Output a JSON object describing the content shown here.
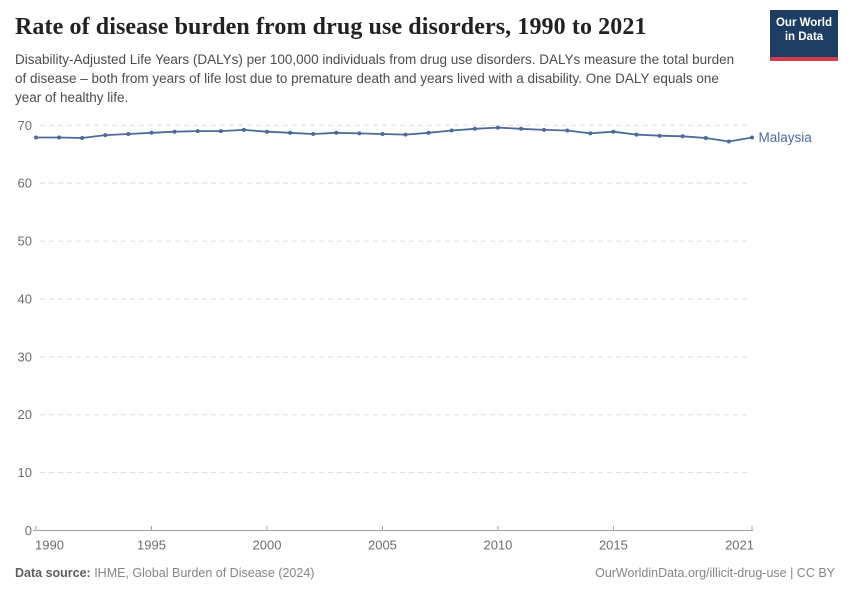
{
  "header": {
    "title": "Rate of disease burden from drug use disorders, 1990 to 2021",
    "subtitle": "Disability-Adjusted Life Years (DALYs) per 100,000 individuals from drug use disorders. DALYs measure the total burden of disease – both from years of life lost due to premature death and years lived with a disability. One DALY equals one year of healthy life.",
    "logo": {
      "line1": "Our World",
      "line2": "in Data",
      "bg_color": "#1d3d63",
      "bar_color": "#cf3e4c"
    }
  },
  "chart_data": {
    "type": "line",
    "title": "Rate of disease burden from drug use disorders, 1990 to 2021",
    "xlabel": "",
    "ylabel": "",
    "xlim": [
      1990,
      2021
    ],
    "ylim": [
      0,
      70
    ],
    "xticks": [
      1990,
      1995,
      2000,
      2005,
      2010,
      2015,
      2021
    ],
    "yticks": [
      0,
      10,
      20,
      30,
      40,
      50,
      60,
      70
    ],
    "grid": "horizontal-dashed",
    "legend_position": "end-of-line",
    "series": [
      {
        "name": "Malaysia",
        "color": "#4C6A9C",
        "years": [
          1990,
          1991,
          1992,
          1993,
          1994,
          1995,
          1996,
          1997,
          1998,
          1999,
          2000,
          2001,
          2002,
          2003,
          2004,
          2005,
          2006,
          2007,
          2008,
          2009,
          2010,
          2011,
          2012,
          2013,
          2014,
          2015,
          2016,
          2017,
          2018,
          2019,
          2020,
          2021
        ],
        "values": [
          67.9,
          67.9,
          67.8,
          68.3,
          68.5,
          68.7,
          68.9,
          69.0,
          69.0,
          69.2,
          68.9,
          68.7,
          68.5,
          68.7,
          68.6,
          68.5,
          68.4,
          68.7,
          69.1,
          69.4,
          69.6,
          69.4,
          69.2,
          69.1,
          68.6,
          68.9,
          68.4,
          68.2,
          68.1,
          67.8,
          67.2,
          67.9
        ]
      }
    ]
  },
  "style": {
    "axis_color": "#a3a3a3",
    "grid_color": "#dddddd",
    "tick_label_color": "#6e6e6e"
  },
  "footer": {
    "source_label": "Data source:",
    "source_value": " IHME, Global Burden of Disease (2024)",
    "credit": "OurWorldinData.org/illicit-drug-use | CC BY"
  }
}
